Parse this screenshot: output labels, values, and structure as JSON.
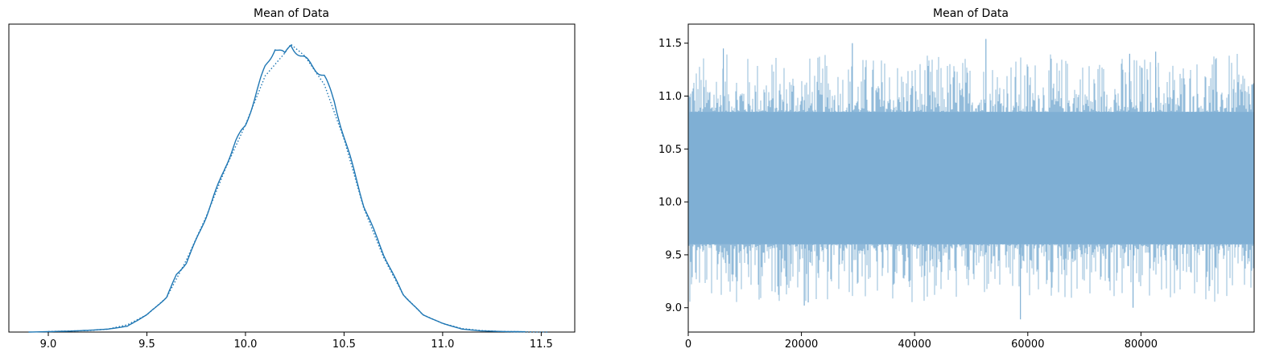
{
  "colors": {
    "line": "#1f77b4",
    "trace": "#7fafd4",
    "axis": "#000000"
  },
  "chart_data": [
    {
      "type": "line",
      "title": "Mean of Data",
      "xlabel": "",
      "ylabel": "",
      "xlim": [
        8.8,
        11.67
      ],
      "ylim": [
        0,
        1.07
      ],
      "xticks": [
        9.0,
        9.5,
        10.0,
        10.5,
        11.0,
        11.5
      ],
      "xtick_labels": [
        "9.0",
        "9.5",
        "10.0",
        "10.5",
        "11.0",
        "11.5"
      ],
      "yticks_visible": false,
      "grid": false,
      "series": [
        {
          "style": "solid",
          "x": [
            8.9,
            9.1,
            9.2,
            9.3,
            9.4,
            9.5,
            9.6,
            9.65,
            9.7,
            9.8,
            9.9,
            9.95,
            10.0,
            10.05,
            10.1,
            10.15,
            10.2,
            10.23,
            10.28,
            10.33,
            10.4,
            10.45,
            10.5,
            10.6,
            10.7,
            10.8,
            10.9,
            11.0,
            11.1,
            11.2,
            11.3,
            11.42
          ],
          "y": [
            0.0,
            0.003,
            0.006,
            0.01,
            0.02,
            0.06,
            0.12,
            0.2,
            0.24,
            0.4,
            0.58,
            0.66,
            0.72,
            0.82,
            0.92,
            0.99,
            0.96,
            1.0,
            0.96,
            0.93,
            0.89,
            0.8,
            0.68,
            0.44,
            0.27,
            0.13,
            0.06,
            0.03,
            0.01,
            0.004,
            0.002,
            0.001
          ]
        },
        {
          "style": "dotted",
          "x": [
            9.0,
            9.2,
            9.3,
            9.4,
            9.5,
            9.6,
            9.7,
            9.8,
            9.9,
            10.0,
            10.1,
            10.2,
            10.23,
            10.3,
            10.4,
            10.5,
            10.6,
            10.7,
            10.8,
            10.9,
            11.0,
            11.1,
            11.2,
            11.3,
            11.4,
            11.53
          ],
          "y": [
            0.002,
            0.005,
            0.01,
            0.025,
            0.06,
            0.12,
            0.25,
            0.4,
            0.57,
            0.72,
            0.89,
            0.97,
            1.0,
            0.96,
            0.86,
            0.67,
            0.43,
            0.26,
            0.13,
            0.06,
            0.03,
            0.012,
            0.005,
            0.002,
            0.001,
            0.0
          ]
        }
      ]
    },
    {
      "type": "line",
      "title": "Mean of Data",
      "xlabel": "",
      "ylabel": "",
      "xlim": [
        0,
        99999
      ],
      "ylim": [
        8.77,
        11.68
      ],
      "xticks": [
        0,
        20000,
        40000,
        60000,
        80000
      ],
      "xtick_labels": [
        "0",
        "20000",
        "40000",
        "60000",
        "80000"
      ],
      "yticks": [
        9.0,
        9.5,
        10.0,
        10.5,
        11.0,
        11.5
      ],
      "ytick_labels": [
        "9.0",
        "9.5",
        "10.0",
        "10.5",
        "11.0",
        "11.5"
      ],
      "grid": false,
      "trace_summary": {
        "draws": 100000,
        "center": 10.22,
        "typical_low": 9.6,
        "typical_high": 10.85,
        "min": 8.89,
        "max": 11.54
      }
    }
  ]
}
